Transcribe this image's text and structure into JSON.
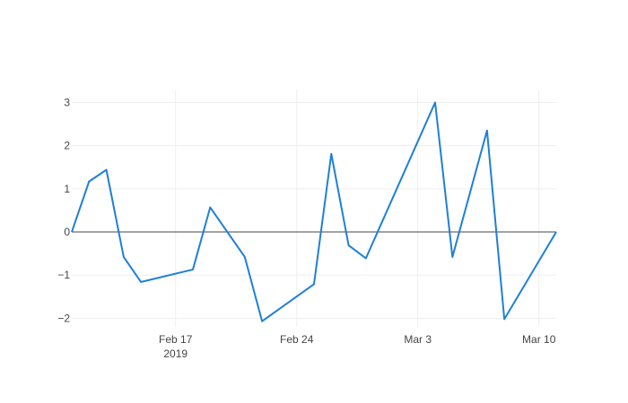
{
  "chart_data": {
    "type": "line",
    "title": "",
    "xlabel": "",
    "ylabel": "",
    "x_axis": {
      "type": "date",
      "range": [
        "2019-02-11",
        "2019-03-11"
      ],
      "ticks": [
        {
          "date": "2019-02-17",
          "label": "Feb 17",
          "sublabel": "2019"
        },
        {
          "date": "2019-02-24",
          "label": "Feb 24",
          "sublabel": ""
        },
        {
          "date": "2019-03-03",
          "label": "Mar 3",
          "sublabel": ""
        },
        {
          "date": "2019-03-10",
          "label": "Mar 10",
          "sublabel": ""
        }
      ]
    },
    "y_axis": {
      "range": [
        -2.2,
        3.3
      ],
      "ticks": [
        {
          "value": 3,
          "label": "3"
        },
        {
          "value": 2,
          "label": "2"
        },
        {
          "value": 1,
          "label": "1"
        },
        {
          "value": 0,
          "label": "0"
        },
        {
          "value": -1,
          "label": "−1"
        },
        {
          "value": -2,
          "label": "−2"
        }
      ],
      "zero_line": true
    },
    "grid": true,
    "series": [
      {
        "color": "#1f7fd8",
        "points": [
          {
            "x": "2019-02-11",
            "y": 0.0
          },
          {
            "x": "2019-02-12",
            "y": 1.17
          },
          {
            "x": "2019-02-13",
            "y": 1.44
          },
          {
            "x": "2019-02-14",
            "y": -0.58
          },
          {
            "x": "2019-02-15",
            "y": -1.16
          },
          {
            "x": "2019-02-18",
            "y": -0.87
          },
          {
            "x": "2019-02-19",
            "y": 0.57
          },
          {
            "x": "2019-02-21",
            "y": -0.58
          },
          {
            "x": "2019-02-22",
            "y": -2.07
          },
          {
            "x": "2019-02-25",
            "y": -1.21
          },
          {
            "x": "2019-02-26",
            "y": 1.81
          },
          {
            "x": "2019-02-27",
            "y": -0.31
          },
          {
            "x": "2019-02-28",
            "y": -0.61
          },
          {
            "x": "2019-03-04",
            "y": 3.0
          },
          {
            "x": "2019-03-05",
            "y": -0.58
          },
          {
            "x": "2019-03-07",
            "y": 2.35
          },
          {
            "x": "2019-03-08",
            "y": -2.02
          },
          {
            "x": "2019-03-11",
            "y": 0.0
          }
        ]
      }
    ]
  }
}
